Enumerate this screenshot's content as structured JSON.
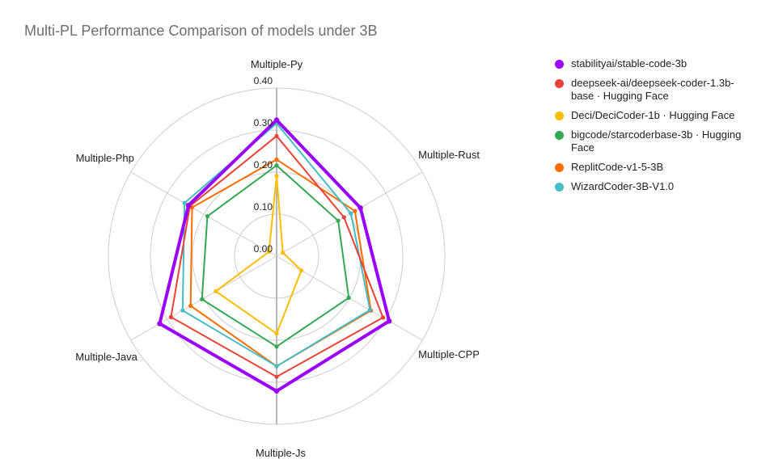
{
  "title": "Multi-PL Performance Comparison of models under 3B",
  "chart_data": {
    "type": "radar",
    "title": "Multi-PL Performance Comparison of models under 3B",
    "categories": [
      "Multiple-Py",
      "Multiple-Rust",
      "Multiple-CPP",
      "Multiple-Js",
      "Multiple-Java",
      "Multiple-Php"
    ],
    "rlim": [
      0,
      0.4
    ],
    "ticks": [
      "0.00",
      "0.10",
      "0.20",
      "0.30",
      "0.40"
    ],
    "grid": "circular",
    "legend_position": "right",
    "series": [
      {
        "name": "stabilityai/stable-code-3b",
        "color": "#9900FF",
        "line_width": 4,
        "values": [
          0.324,
          0.23,
          0.309,
          0.321,
          0.321,
          0.242
        ]
      },
      {
        "name": "deepseek-ai/deepseek-coder-1.3b-base · Hugging Face",
        "color": "#EA4335",
        "line_width": 2,
        "values": [
          0.286,
          0.185,
          0.292,
          0.287,
          0.29,
          0.238
        ]
      },
      {
        "name": "Deci/DeciCoder-1b · Hugging Face",
        "color": "#FBBC04",
        "line_width": 2,
        "values": [
          0.191,
          0.017,
          0.068,
          0.184,
          0.167,
          0.021
        ]
      },
      {
        "name": "bigcode/starcoderbase-3b · Hugging Face",
        "color": "#34A853",
        "line_width": 2,
        "values": [
          0.216,
          0.169,
          0.198,
          0.215,
          0.205,
          0.19
        ]
      },
      {
        "name": "ReplitCode-v1-5-3B",
        "color": "#FF6D01",
        "line_width": 2,
        "values": [
          0.23,
          0.215,
          0.259,
          0.262,
          0.236,
          0.232
        ]
      },
      {
        "name": "WizardCoder-3B-V1.0",
        "color": "#46BDC6",
        "line_width": 2,
        "values": [
          0.316,
          0.204,
          0.256,
          0.262,
          0.258,
          0.253
        ]
      }
    ],
    "colors": {
      "gridline": "#cdcdcd",
      "value_axis": "#b8b8b8",
      "tick_text": "#1f1f1f",
      "axis_label_text": "#202124",
      "title_text": "#6e6e6e"
    }
  }
}
